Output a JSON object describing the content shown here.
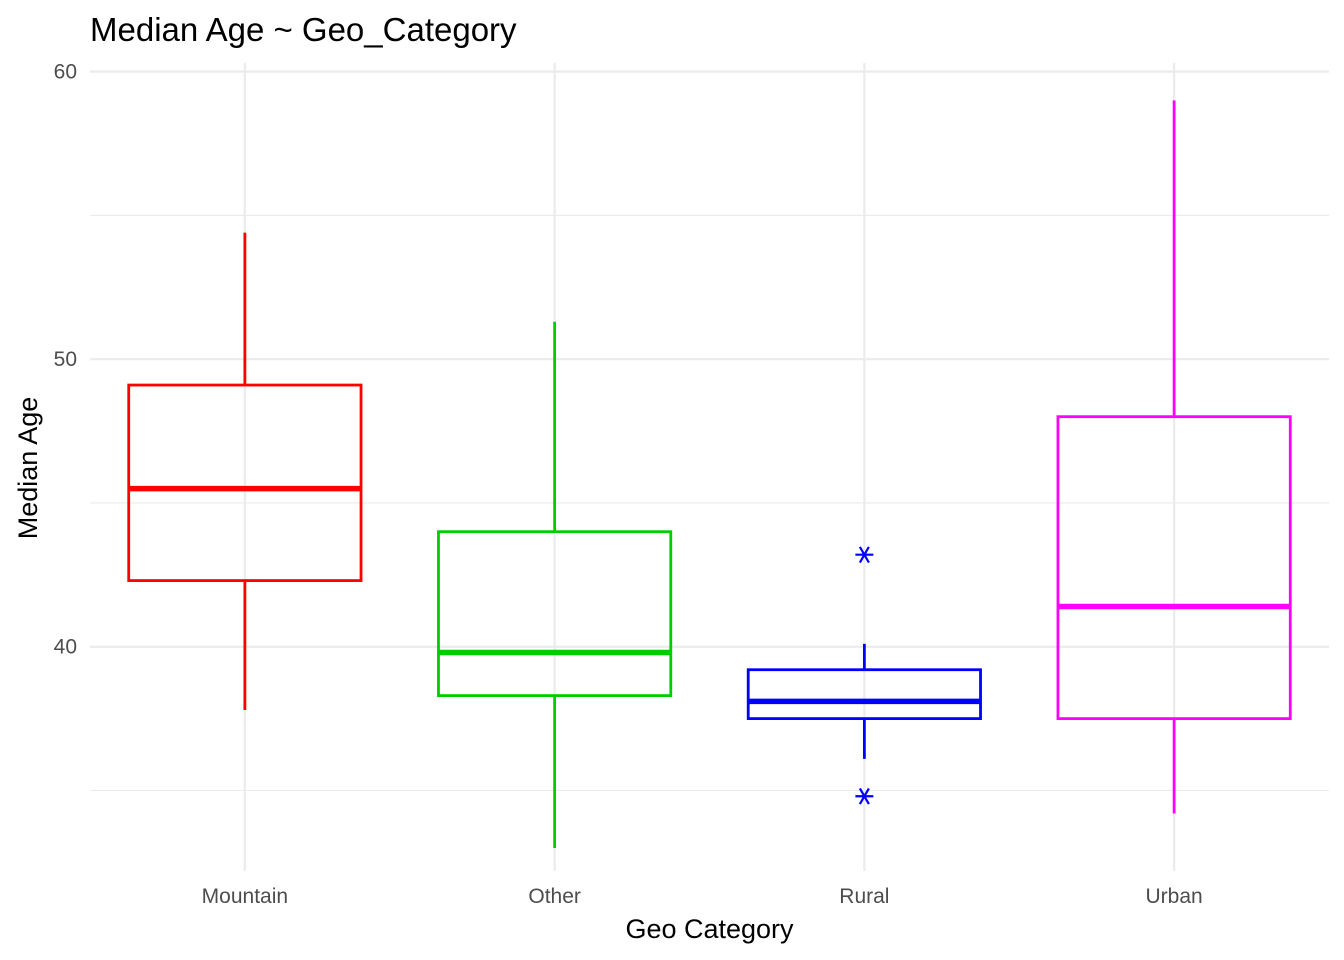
{
  "chart_data": {
    "type": "boxplot",
    "title": "Median Age ~ Geo_Category",
    "xlabel": "Geo Category",
    "ylabel": "Median Age",
    "categories": [
      "Mountain",
      "Other",
      "Rural",
      "Urban"
    ],
    "ylim": [
      32.2,
      60.3
    ],
    "yticks": [
      40,
      50,
      60
    ],
    "grid": true,
    "legend": "none",
    "boxes": [
      {
        "category": "Mountain",
        "color": "#ff0000",
        "whisker_low": 37.8,
        "q1": 42.3,
        "median": 45.5,
        "q3": 49.1,
        "whisker_high": 54.4,
        "outliers": []
      },
      {
        "category": "Other",
        "color": "#00cd00",
        "whisker_low": 33.0,
        "q1": 38.3,
        "median": 39.8,
        "q3": 44.0,
        "whisker_high": 51.3,
        "outliers": []
      },
      {
        "category": "Rural",
        "color": "#0000ff",
        "whisker_low": 36.1,
        "q1": 37.5,
        "median": 38.1,
        "q3": 39.2,
        "whisker_high": 40.1,
        "outliers": [
          43.2,
          34.8
        ]
      },
      {
        "category": "Urban",
        "color": "#ff00ff",
        "whisker_low": 34.2,
        "q1": 37.5,
        "median": 41.4,
        "q3": 48.0,
        "whisker_high": 59.0,
        "outliers": []
      }
    ]
  }
}
